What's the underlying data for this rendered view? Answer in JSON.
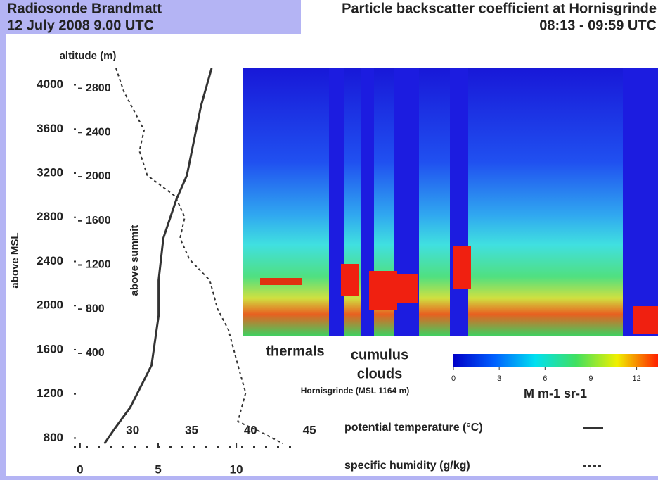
{
  "chart_data": [
    {
      "type": "line",
      "title": "Radiosonde Brandmatt",
      "subtitle": "12 July 2008 9.00 UTC",
      "ylabel": "altitude (m)",
      "ylabel_left": "above MSL",
      "y2label": "above summit",
      "ylim": [
        720,
        4150
      ],
      "yticks": [
        800,
        1200,
        1600,
        2000,
        2400,
        2800,
        3200,
        3600,
        4000
      ],
      "y2lim": [
        -448,
        2982
      ],
      "y2ticks": [
        400,
        800,
        1200,
        1600,
        2000,
        2400,
        2800
      ],
      "xlim": [
        -0.4,
        14
      ],
      "xticks": [
        0,
        5,
        10
      ],
      "x2lim": [
        25,
        44.1
      ],
      "x2ticks": [
        30,
        35,
        40,
        45
      ],
      "legend": "lower right",
      "series": [
        {
          "name": "potential temperature (°C)",
          "color": "#333333",
          "style": "solid",
          "axis": "x2",
          "x": [
            36.7,
            35.8,
            34.6,
            33.7,
            32.6,
            32.2,
            32.2,
            31.6,
            29.8,
            28.5,
            27.6
          ],
          "values": [
            4150,
            3810,
            3180,
            2960,
            2610,
            2230,
            1910,
            1460,
            1080,
            890,
            750
          ]
        },
        {
          "name": "specific humidity (g/kg)",
          "color": "#333333",
          "style": "dashed",
          "x": [
            2.3,
            2.8,
            4.1,
            3.8,
            4.3,
            6.1,
            6.7,
            6.4,
            7.0,
            8.3,
            8.8,
            9.5,
            10.1,
            10.6,
            10.1,
            11.5,
            13.0
          ],
          "values": [
            4150,
            3940,
            3590,
            3400,
            3180,
            2990,
            2800,
            2610,
            2420,
            2230,
            1970,
            1780,
            1460,
            1210,
            950,
            860,
            750
          ]
        }
      ]
    },
    {
      "type": "image",
      "title": "Particle backscatter coefficient at Hornisgrinde",
      "subtitle": "08:13 - 09:59 UTC",
      "annotations": [
        "thermals",
        "cumulus",
        "clouds",
        "Hornisgrinde (MSL 1164 m)"
      ],
      "colorbar": {
        "clim": [
          0,
          13.4
        ],
        "ticks": [
          0,
          3,
          6,
          9,
          12
        ],
        "label": "M m-1 sr-1",
        "colors": [
          "#0000c8",
          "#0060ff",
          "#00e0f0",
          "#40e060",
          "#f0f000",
          "#ff2000"
        ]
      }
    }
  ]
}
